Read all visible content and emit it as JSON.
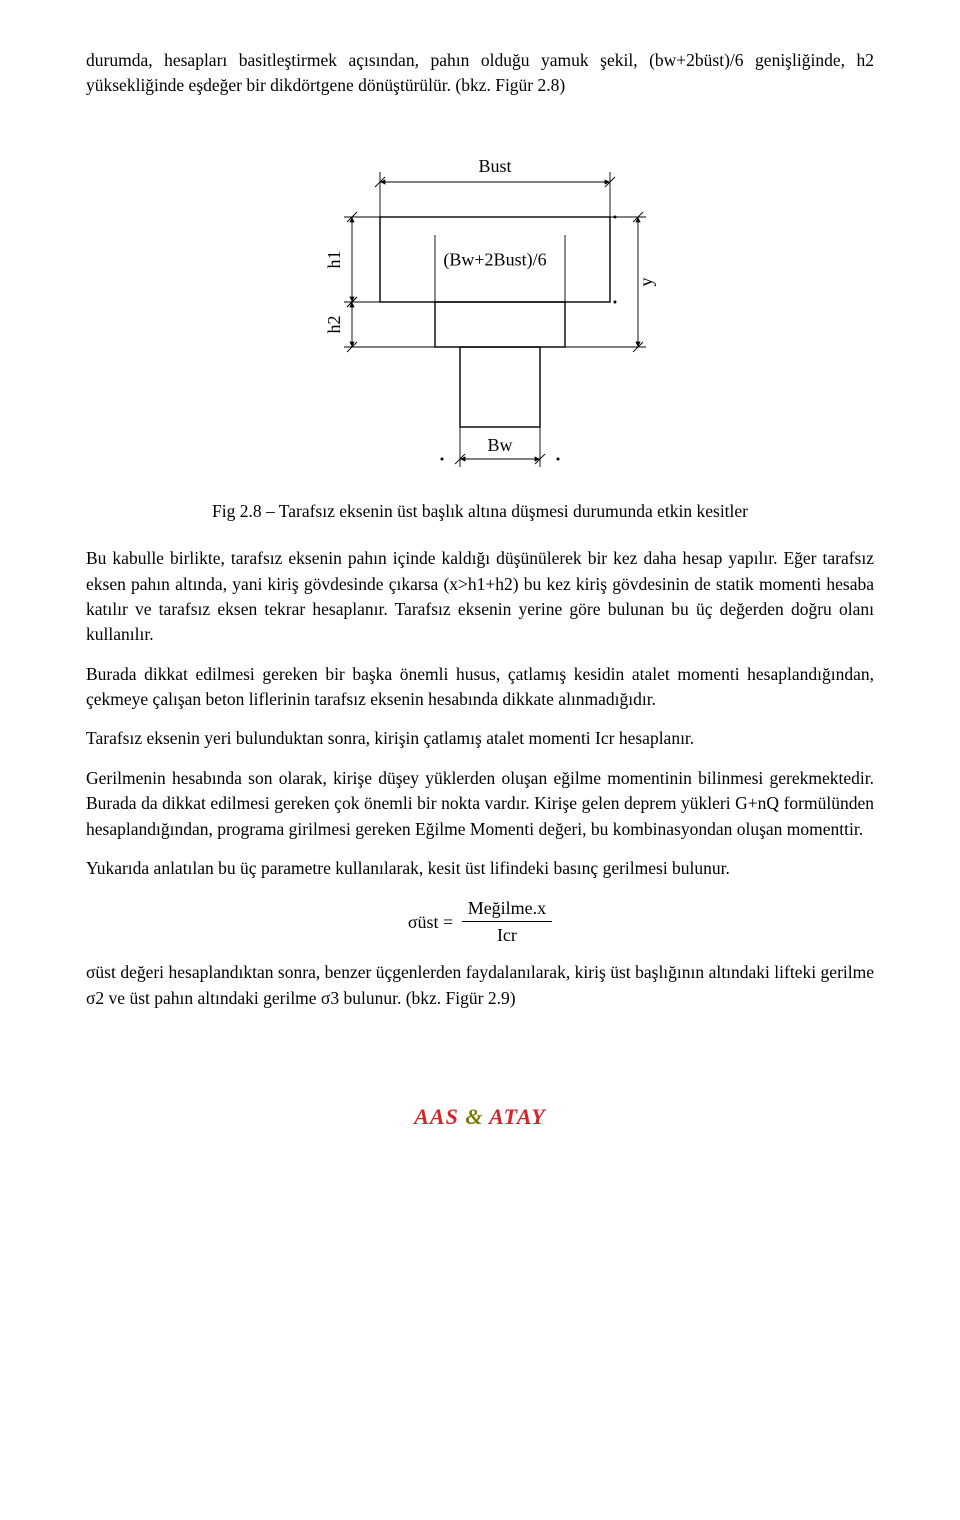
{
  "para_intro": "durumda, hesapları basitleştirmek açısından, pahın olduğu yamuk şekil, (bw+2büst)/6 genişliğinde, h2 yüksekliğinde eşdeğer bir dikdörtgene dönüştürülür. (bkz. Figür 2.8)",
  "diagram": {
    "label_bust": "Bust",
    "label_formula": "(Bw+2Bust)/6",
    "label_h1": "h1",
    "label_h2": "h2",
    "label_y": "y",
    "label_bw": "Bw",
    "stroke": "#000000",
    "stroke_thin": 0.9,
    "stroke_mid": 1.4,
    "font_label": "18",
    "font_small": "14"
  },
  "caption": "Fig 2.8 – Tarafsız eksenin üst başlık altına düşmesi durumunda etkin kesitler",
  "para_1": "Bu kabulle birlikte, tarafsız eksenin pahın içinde kaldığı düşünülerek bir kez daha hesap yapılır. Eğer tarafsız eksen pahın altında, yani kiriş gövdesinde çıkarsa (x>h1+h2) bu kez kiriş gövdesinin de statik momenti hesaba katılır ve tarafsız eksen tekrar hesaplanır. Tarafsız eksenin yerine göre bulunan bu üç değerden doğru olanı kullanılır.",
  "para_2": "Burada dikkat edilmesi gereken bir başka önemli husus, çatlamış kesidin atalet momenti hesaplandığından, çekmeye çalışan beton liflerinin tarafsız eksenin hesabında dikkate alınmadığıdır.",
  "para_3": "Tarafsız eksenin yeri bulunduktan sonra, kirişin çatlamış atalet momenti Icr hesaplanır.",
  "para_4": "Gerilmenin hesabında son olarak, kirişe düşey yüklerden oluşan eğilme momentinin bilinmesi gerekmektedir. Burada da dikkat edilmesi gereken çok önemli bir nokta vardır. Kirişe gelen deprem yükleri G+nQ formülünden hesaplandığından, programa girilmesi gereken Eğilme Momenti değeri, bu kombinasyondan oluşan momenttir.",
  "para_5": "Yukarıda anlatılan bu üç parametre kullanılarak, kesit üst lifindeki basınç gerilmesi bulunur.",
  "formula": {
    "lhs": "σüst =",
    "num": "Meğilme.x",
    "den": "Icr"
  },
  "para_6": "σüst değeri hesaplandıktan sonra, benzer üçgenlerden faydalanılarak, kiriş üst başlığının altındaki lifteki gerilme σ2 ve üst pahın altındaki gerilme σ3 bulunur. (bkz. Figür 2.9)",
  "footer": {
    "part1": "AAS",
    "amp": "&",
    "part2": "ATAY"
  }
}
